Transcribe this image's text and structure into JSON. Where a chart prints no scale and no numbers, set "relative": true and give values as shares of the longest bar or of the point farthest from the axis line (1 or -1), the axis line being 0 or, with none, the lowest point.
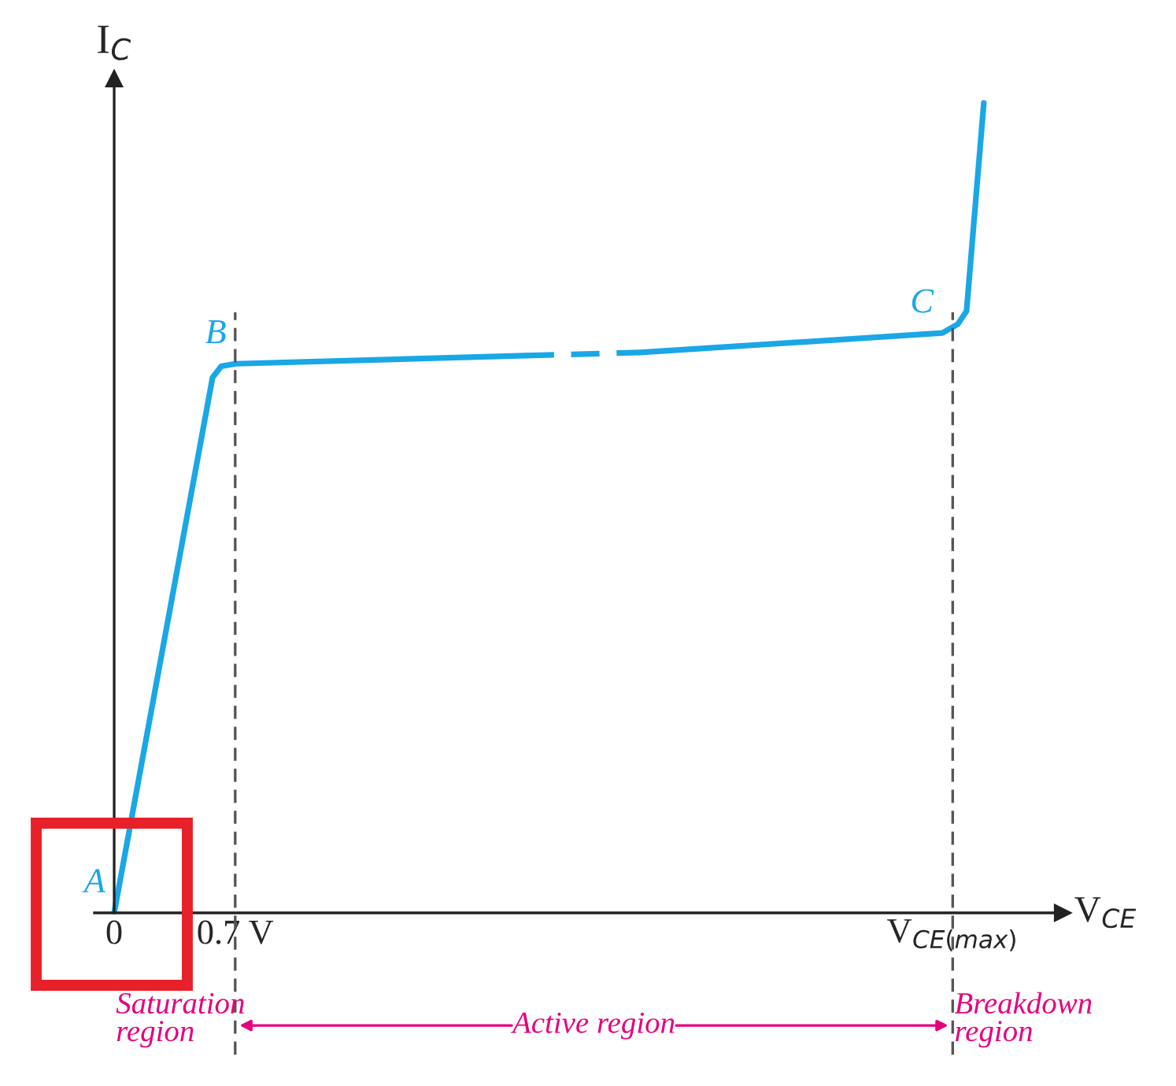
{
  "chart_data": {
    "type": "line",
    "relative": true,
    "xlabel": "V$_{CE}$",
    "ylabel": "I$_{C}$",
    "series": [
      {
        "color": "#1aa7e6",
        "line_style": "solid",
        "x": [
          0,
          0.569,
          0.62,
          0.7,
          2.38
        ],
        "values": [
          0,
          0.661,
          0.675,
          0.678,
          0.688
        ]
      },
      {
        "color": "#1aa7e6",
        "line_style": "dashed",
        "x": [
          2.38,
          3.04
        ],
        "values": [
          0.688,
          0.692
        ]
      },
      {
        "color": "#1aa7e6",
        "line_style": "solid",
        "x": [
          3.04,
          4.79,
          4.88,
          4.93,
          5.03
        ],
        "values": [
          0.692,
          0.716,
          0.727,
          0.743,
          1
        ]
      }
    ],
    "xlim": [
      -0.114,
      5.486
    ],
    "xticks": [
      0,
      {
        "value": 0.7,
        "label": "0.7 V"
      },
      {
        "value": 4.85,
        "label": "V$_{CE(max)}$"
      }
    ],
    "ref_lines": [
      {
        "axis": "x",
        "value": 0.7,
        "color": "#555555",
        "line_style": "dashed"
      },
      {
        "axis": "x",
        "value": 4.85,
        "color": "#555555",
        "line_style": "dashed"
      }
    ],
    "annotations": [
      {
        "text": "A",
        "x": 0,
        "y": 0
      },
      {
        "text": "B",
        "x": 0.7,
        "y": 0.678
      },
      {
        "text": "C",
        "x": 4.79,
        "y": 0.716
      },
      "Saturation\nregion",
      "Active region",
      "Breakdown\nregion"
    ],
    "grid": false
  }
}
